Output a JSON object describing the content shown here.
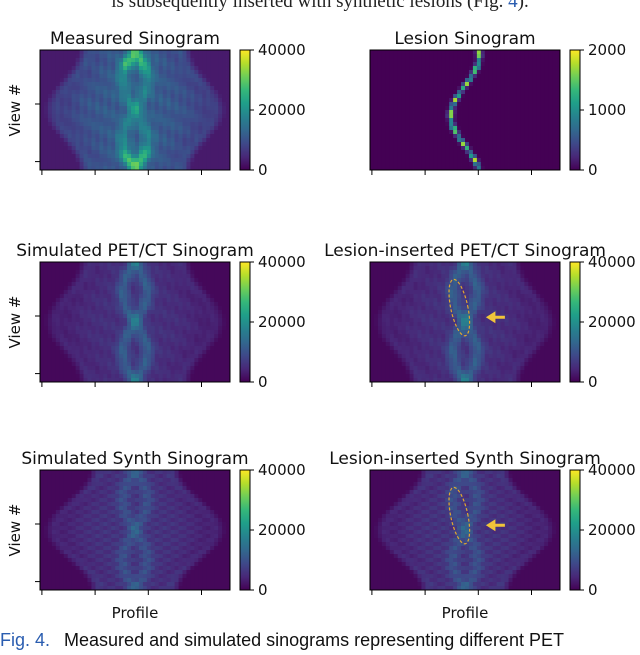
{
  "header_text": {
    "before": "is subsequently inserted with synthetic lesions (Fig. ",
    "ref": "4",
    "after": ")."
  },
  "caption": {
    "label": "Fig. 4.",
    "text": "Measured and simulated sinograms representing different PET"
  },
  "colormap": "viridis",
  "colors": {
    "arrow": "#f0c43a",
    "ellipse": "#e0a830",
    "link": "#2a5db0"
  },
  "chart_data": [
    {
      "type": "heatmap",
      "id": "measured",
      "title": "Measured Sinogram",
      "ylabel": "View #",
      "xlabel": "",
      "colorbar": {
        "min": 0,
        "max": 40000,
        "ticks": [
          0,
          20000,
          40000
        ]
      },
      "pattern": "measured"
    },
    {
      "type": "heatmap",
      "id": "lesion",
      "title": "Lesion Sinogram",
      "ylabel": "",
      "xlabel": "",
      "colorbar": {
        "min": 0,
        "max": 2000,
        "ticks": [
          0,
          1000,
          2000
        ]
      },
      "pattern": "lesion"
    },
    {
      "type": "heatmap",
      "id": "sim-petct",
      "title": "Simulated PET/CT Sinogram",
      "ylabel": "View #",
      "xlabel": "",
      "colorbar": {
        "min": 0,
        "max": 40000,
        "ticks": [
          0,
          20000,
          40000
        ]
      },
      "pattern": "simulated"
    },
    {
      "type": "heatmap",
      "id": "lesion-petct",
      "title": "Lesion-inserted PET/CT Sinogram",
      "ylabel": "",
      "xlabel": "",
      "colorbar": {
        "min": 0,
        "max": 40000,
        "ticks": [
          0,
          20000,
          40000
        ]
      },
      "pattern": "simulated",
      "annotation": "lesion-marker"
    },
    {
      "type": "heatmap",
      "id": "sim-synth",
      "title": "Simulated  Synth  Sinogram",
      "ylabel": "View #",
      "xlabel": "Profile",
      "colorbar": {
        "min": 0,
        "max": 40000,
        "ticks": [
          0,
          20000,
          40000
        ]
      },
      "pattern": "synth"
    },
    {
      "type": "heatmap",
      "id": "lesion-synth",
      "title": "Lesion-inserted  Synth  Sinogram",
      "ylabel": "",
      "xlabel": "Profile",
      "colorbar": {
        "min": 0,
        "max": 40000,
        "ticks": [
          0,
          20000,
          40000
        ]
      },
      "pattern": "synth",
      "annotation": "lesion-marker"
    }
  ]
}
